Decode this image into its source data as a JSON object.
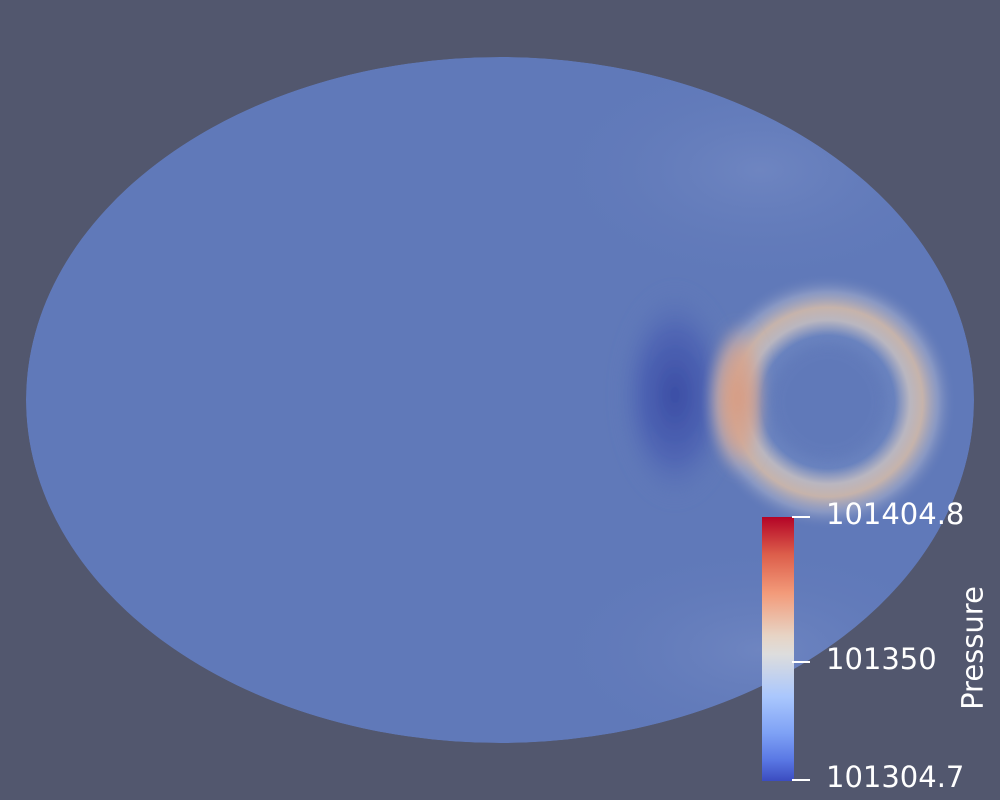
{
  "view": {
    "background_color": "#52576e",
    "field_name": "Pressure",
    "colormap": "Cool to Warm"
  },
  "colorbar": {
    "title": "Pressure",
    "max_label": "101404.8",
    "mid_label": "101350",
    "min_label": "101304.7",
    "max_value": 101404.8,
    "mid_value": 101350,
    "min_value": 101304.7,
    "max_color": "#b40426",
    "mid_color": "#dddddd",
    "min_color": "#3b4cc0"
  },
  "field": {
    "base_color": "#6079b9",
    "low_pressure_color": "#3b4fa8",
    "high_pressure_color": "#d3977f"
  }
}
